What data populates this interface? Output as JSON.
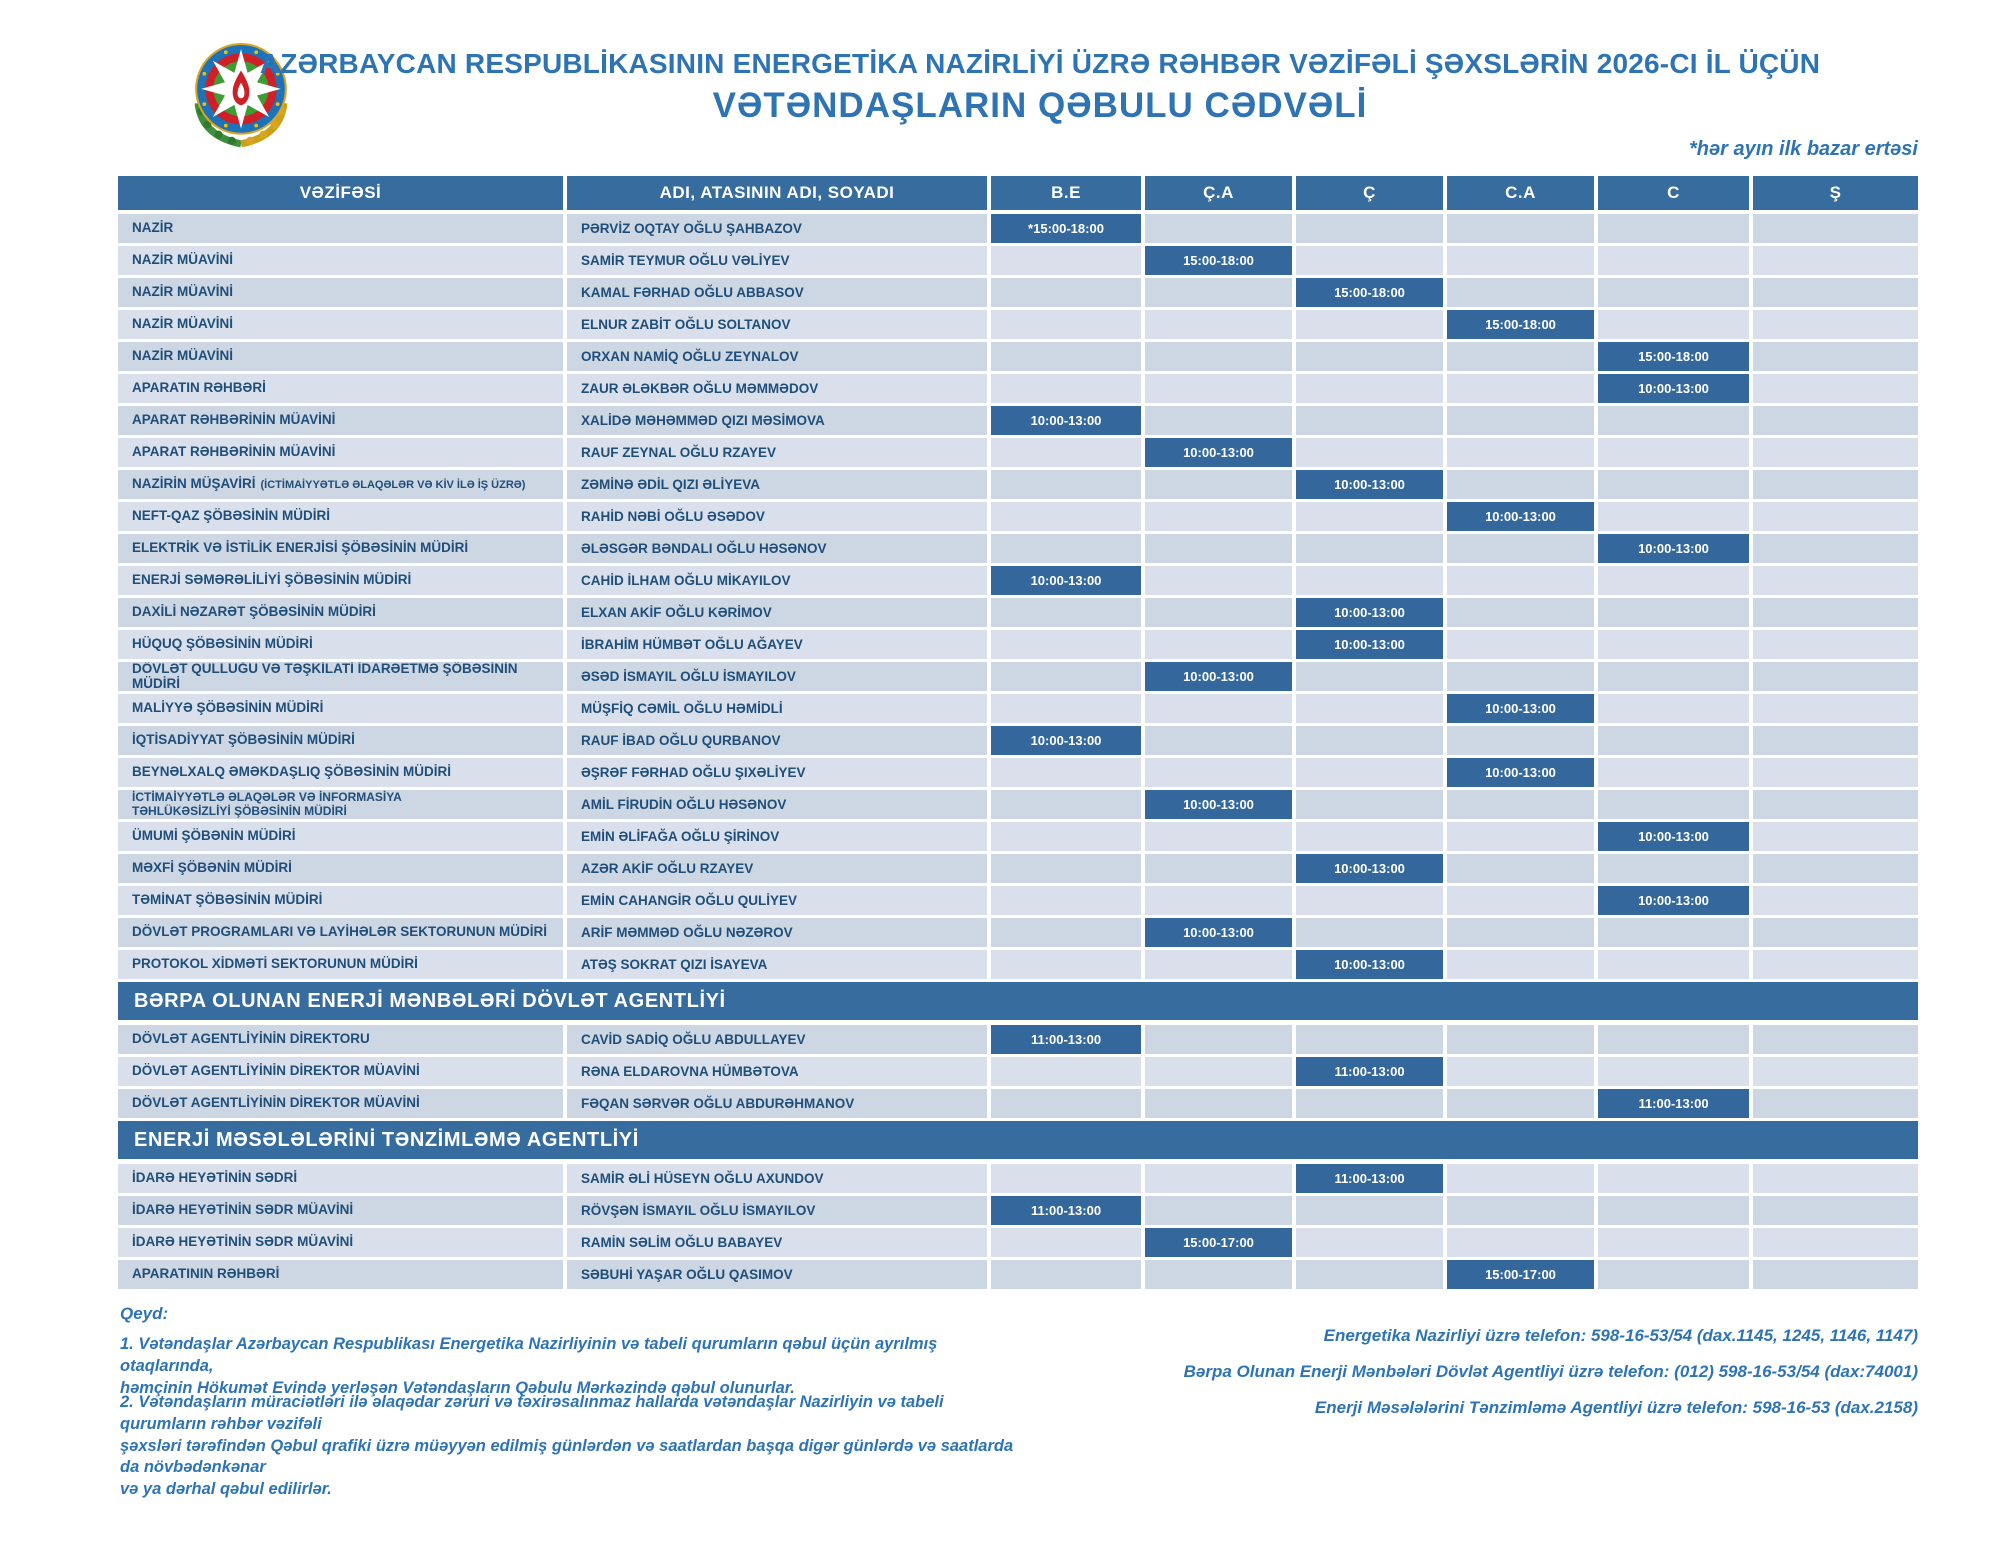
{
  "header": {
    "title_line1": "AZƏRBAYCAN RESPUBLİKASININ ENERGETİKA NAZİRLİYİ ÜZRƏ RƏHBƏR VƏZİFƏLİ ŞƏXSLƏRİN 2026-CI  İL ÜÇÜN",
    "title_line2": "VƏTƏNDAŞLARIN QƏBULU CƏDVƏLİ",
    "asterisk_note": "*hər ayın ilk bazar ertəsi",
    "emblem_name": "azerbaijan-state-emblem"
  },
  "colors": {
    "header_bg": "#376c9f",
    "highlight_bg": "#34689c",
    "row_dark": "#cdd6e3",
    "row_light": "#d9e0eb",
    "text_blue": "#1f4e79",
    "title_blue": "#2e74b5"
  },
  "table": {
    "columns": [
      "VƏZİFƏSİ",
      "ADI, ATASININ ADI, SOYADI"
    ],
    "day_columns": [
      "B.E",
      "Ç.A",
      "Ç",
      "C.A",
      "C",
      "Ş"
    ],
    "rows": [
      {
        "type": "row",
        "position": "NAZİR",
        "name": "PƏRVİZ OQTAY OĞLU ŞAHBAZOV",
        "day": 0,
        "time": "*15:00-18:00"
      },
      {
        "type": "row",
        "position": "NAZİR MÜAVİNİ",
        "name": "SAMİR TEYMUR OĞLU VƏLİYEV",
        "day": 1,
        "time": "15:00-18:00"
      },
      {
        "type": "row",
        "position": "NAZİR MÜAVİNİ",
        "name": "KAMAL FƏRHAD OĞLU ABBASOV",
        "day": 2,
        "time": "15:00-18:00"
      },
      {
        "type": "row",
        "position": "NAZİR MÜAVİNİ",
        "name": "ELNUR ZABİT OĞLU SOLTANOV",
        "day": 3,
        "time": "15:00-18:00"
      },
      {
        "type": "row",
        "position": "NAZİR MÜAVİNİ",
        "name": "ORXAN NAMİQ OĞLU ZEYNALOV",
        "day": 4,
        "time": "15:00-18:00"
      },
      {
        "type": "row",
        "position": "APARATIN RƏHBƏRİ",
        "name": "ZAUR ƏLƏKBƏR OĞLU MƏMMƏDOV",
        "day": 4,
        "time": "10:00-13:00"
      },
      {
        "type": "row",
        "position": "APARAT RƏHBƏRİNİN MÜAVİNİ",
        "name": "XALİDƏ MƏHƏMMƏD QIZI MƏSİMOVA",
        "day": 0,
        "time": "10:00-13:00"
      },
      {
        "type": "row",
        "position": "APARAT RƏHBƏRİNİN MÜAVİNİ",
        "name": "RAUF ZEYNAL OĞLU RZAYEV",
        "day": 1,
        "time": "10:00-13:00"
      },
      {
        "type": "row",
        "position": "NAZİRİN MÜŞAVİRİ",
        "position_note": "(İCTİMAİYYƏTLƏ ƏLAQƏLƏR VƏ KİV İLƏ İŞ  ÜZRƏ)",
        "name": "ZƏMİNƏ ƏDİL QIZI ƏLİYEVA",
        "day": 2,
        "time": "10:00-13:00"
      },
      {
        "type": "row",
        "position": "NEFT-QAZ ŞÖBƏSİNİN MÜDİRİ",
        "name": "RAHİD NƏBİ OĞLU ƏSƏDOV",
        "day": 3,
        "time": "10:00-13:00"
      },
      {
        "type": "row",
        "position": "ELEKTRİK VƏ İSTİLİK ENERJİSİ ŞÖBƏSİNİN MÜDİRİ",
        "name": "ƏLƏSGƏR BƏNDALI OĞLU HƏSƏNOV",
        "day": 4,
        "time": "10:00-13:00"
      },
      {
        "type": "row",
        "position": "ENERJİ SƏMƏRƏLİLİYİ ŞÖBƏSİNİN MÜDİRİ",
        "name": "CAHİD İLHAM OĞLU MİKAYILOV",
        "day": 0,
        "time": "10:00-13:00"
      },
      {
        "type": "row",
        "position": "DAXİLİ NƏZARƏT ŞÖBƏSİNİN MÜDİRİ",
        "name": "ELXAN AKİF OĞLU KƏRİMOV",
        "day": 2,
        "time": "10:00-13:00"
      },
      {
        "type": "row",
        "position": "HÜQUQ ŞÖBƏSİNİN MÜDİRİ",
        "name": "İBRAHİM HÜMBƏT OĞLU AĞAYEV",
        "day": 2,
        "time": "10:00-13:00"
      },
      {
        "type": "row",
        "position": "DÖVLƏT QULLUĞU VƏ TƏŞKİLATİ İDARƏETMƏ ŞÖBƏSİNİN MÜDİRİ",
        "name": "ƏSƏD İSMAYIL OĞLU İSMAYILOV",
        "day": 1,
        "time": "10:00-13:00"
      },
      {
        "type": "row",
        "position": "MALİYYƏ ŞÖBƏSİNİN MÜDİRİ",
        "name": "MÜŞFİQ CƏMİL OĞLU HƏMİDLİ",
        "day": 3,
        "time": "10:00-13:00"
      },
      {
        "type": "row",
        "position": "İQTİSADİYYAT ŞÖBƏSİNİN MÜDİRİ",
        "name": "RAUF İBAD OĞLU QURBANOV",
        "day": 0,
        "time": "10:00-13:00"
      },
      {
        "type": "row",
        "position": "BEYNƏLXALQ ƏMƏKDAŞLIQ ŞÖBƏSİNİN MÜDİRİ",
        "name": "ƏŞRƏF FƏRHAD OĞLU ŞIXƏLİYEV",
        "day": 3,
        "time": "10:00-13:00"
      },
      {
        "type": "row",
        "position": "İCTİMAİYYƏTLƏ ƏLAQƏLƏR VƏ İNFORMASİYA\nTƏHLÜKƏSİZLİYİ ŞÖBƏSİNİN MÜDİRİ",
        "name": "AMİL FİRUDİN OĞLU HƏSƏNOV",
        "day": 1,
        "time": "10:00-13:00"
      },
      {
        "type": "row",
        "position": "ÜMUMİ ŞÖBƏNİN MÜDİRİ",
        "name": "EMİN ƏLİFAĞA OĞLU ŞİRİNOV",
        "day": 4,
        "time": "10:00-13:00"
      },
      {
        "type": "row",
        "position": "MƏXFİ ŞÖBƏNİN MÜDİRİ",
        "name": "AZƏR AKİF OĞLU RZAYEV",
        "day": 2,
        "time": "10:00-13:00"
      },
      {
        "type": "row",
        "position": "TƏMİNAT ŞÖBƏSİNİN MÜDİRİ",
        "name": "EMİN CAHANGİR OĞLU QULİYEV",
        "day": 4,
        "time": "10:00-13:00"
      },
      {
        "type": "row",
        "position": "DÖVLƏT PROGRAMLARI VƏ LAYİHƏLƏR SEKTORUNUN MÜDİRİ",
        "name": "ARİF MƏMMƏD OĞLU NƏZƏROV",
        "day": 1,
        "time": "10:00-13:00"
      },
      {
        "type": "row",
        "position": "PROTOKOL XİDMƏTİ SEKTORUNUN MÜDİRİ",
        "name": "ATƏŞ SOKRAT QIZI İSAYEVA",
        "day": 2,
        "time": "10:00-13:00"
      },
      {
        "type": "section",
        "label": "BƏRPA OLUNAN ENERJİ MƏNBƏLƏRİ DÖVLƏT AGENTLİYİ"
      },
      {
        "type": "row",
        "position": "DÖVLƏT AGENTLİYİNİN DİREKTORU",
        "name": "CAVİD SADİQ OĞLU ABDULLAYEV",
        "day": 0,
        "time": "11:00-13:00"
      },
      {
        "type": "row",
        "position": "DÖVLƏT AGENTLİYİNİN DİREKTOR MÜAVİNİ",
        "name": "RƏNA ELDAROVNA HÜMBƏTOVA",
        "day": 2,
        "time": "11:00-13:00"
      },
      {
        "type": "row",
        "position": "DÖVLƏT AGENTLİYİNİN DİREKTOR MÜAVİNİ",
        "name": "FƏQAN SƏRVƏR OĞLU ABDURƏHMANOV",
        "day": 4,
        "time": "11:00-13:00"
      },
      {
        "type": "section",
        "label": "ENERJİ MƏSƏLƏLƏRİNİ TƏNZİMLƏMƏ AGENTLİYİ"
      },
      {
        "type": "row",
        "position": "İDARƏ HEYƏTİNİN SƏDRİ",
        "name": "SAMİR ƏLİ HÜSEYN OĞLU AXUNDOV",
        "day": 2,
        "time": "11:00-13:00"
      },
      {
        "type": "row",
        "position": "İDARƏ HEYƏTİNİN SƏDR MÜAVİNİ",
        "name": "RÖVŞƏN İSMAYIL OĞLU İSMAYILOV",
        "day": 0,
        "time": "11:00-13:00"
      },
      {
        "type": "row",
        "position": "İDARƏ HEYƏTİNİN SƏDR MÜAVİNİ",
        "name": "RAMİN SƏLİM OĞLU BABAYEV",
        "day": 1,
        "time": "15:00-17:00"
      },
      {
        "type": "row",
        "position": "APARATININ RƏHBƏRİ",
        "name": "SƏBUHİ YAŞAR OĞLU QASIMOV",
        "day": 3,
        "time": "15:00-17:00"
      }
    ]
  },
  "footer": {
    "qeyd_label": "Qeyd:",
    "note1": "1. Vətəndaşlar Azərbaycan Respublikası Energetika Nazirliyinin və tabeli qurumların qəbul üçün ayrılmış otaqlarında,\nhəmçinin Hökumət Evində yerləşən Vətəndaşların Qəbulu Mərkəzində qəbul olunurlar.",
    "note2": "2. Vətəndaşların müraciətləri ilə əlaqədar zəruri və təxirəsalınmaz hallarda vətəndaşlar Nazirliyin və tabeli qurumların rəhbər vəzifəli\nşəxsləri tərəfindən Qəbul qrafiki üzrə müəyyən edilmiş günlərdən və saatlardan başqa digər günlərdə və saatlarda da növbədənkənar\nvə ya dərhal qəbul edilirlər.",
    "phones": [
      "Energetika Nazirliyi üzrə telefon: 598-16-53/54 (dax.1145, 1245, 1146, 1147)",
      "Bərpa Olunan Enerji Mənbələri Dövlət Agentliyi üzrə telefon: (012) 598-16-53/54 (dax:74001)",
      "Enerji Məsələlərini Tənzimləmə Agentliyi üzrə telefon: 598-16-53 (dax.2158)"
    ]
  }
}
